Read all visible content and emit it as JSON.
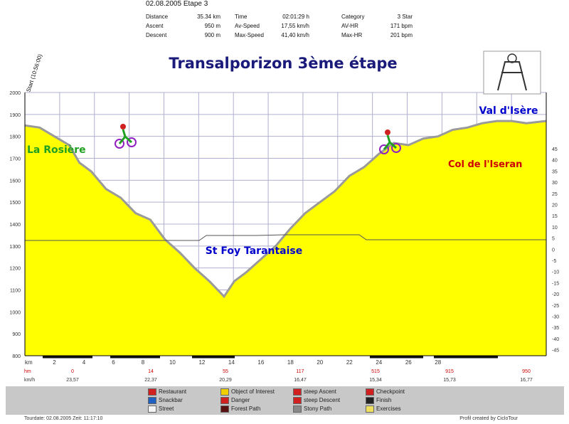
{
  "header": {
    "date_stage": "02.08.2005 Etape 3",
    "stats": [
      {
        "label": "Distance",
        "value": "35.34 km"
      },
      {
        "label": "Time",
        "value": "02:01:29 h"
      },
      {
        "label": "Category",
        "value": "3 Star"
      },
      {
        "label": "Ascent",
        "value": "950 m"
      },
      {
        "label": "Av-Speed",
        "value": "17,55 km/h"
      },
      {
        "label": "AV-HR",
        "value": "171 bpm"
      },
      {
        "label": "Descent",
        "value": "900 m"
      },
      {
        "label": "Max-Speed",
        "value": "41,40 km/h"
      },
      {
        "label": "Max-HR",
        "value": "201 bpm"
      }
    ]
  },
  "chart_data": {
    "type": "area",
    "title": "Transalporizon 3ème étape",
    "start_label": "Start (10:56:00)",
    "annotations": [
      "La Rosière",
      "St Foy Tarantaise",
      "Col de l'Iseran",
      "Val d'Isère"
    ],
    "x": [
      0,
      1,
      2,
      3,
      3.7,
      4.5,
      5.5,
      6.5,
      7.5,
      8.5,
      9.5,
      10.5,
      11.5,
      12.5,
      13.5,
      14.2,
      15,
      16,
      17,
      18,
      19,
      20,
      21,
      22,
      23,
      24,
      25,
      26,
      27,
      28,
      29,
      30,
      31,
      32,
      33,
      34,
      35.34
    ],
    "y": [
      1850,
      1840,
      1800,
      1760,
      1680,
      1640,
      1560,
      1520,
      1450,
      1420,
      1330,
      1270,
      1200,
      1140,
      1070,
      1140,
      1180,
      1240,
      1300,
      1380,
      1450,
      1500,
      1550,
      1620,
      1660,
      1720,
      1770,
      1760,
      1790,
      1800,
      1830,
      1840,
      1860,
      1870,
      1870,
      1860,
      1870
    ],
    "xlim": [
      0,
      35.34
    ],
    "ylim": [
      800,
      2000
    ],
    "xlabel": "km",
    "x_ticks": [
      "2",
      "4",
      "6",
      "8",
      "10",
      "12",
      "14",
      "16",
      "18",
      "20",
      "22",
      "24",
      "26",
      "28"
    ],
    "y_ticks_left": [
      "800",
      "900",
      "1000",
      "1100",
      "1200",
      "1300",
      "1400",
      "1500",
      "1600",
      "1700",
      "1800",
      "1900",
      "2000"
    ],
    "y_ticks_right": [
      "45",
      "40",
      "35",
      "30",
      "25",
      "20",
      "15",
      "10",
      "5",
      "0",
      "-5",
      "-10",
      "-15",
      "-20",
      "-25",
      "-30",
      "-35",
      "-40",
      "-45"
    ],
    "hm_label": "hm",
    "hm_values": [
      "0",
      "14",
      "55",
      "117",
      "515",
      "915",
      "950"
    ],
    "kmh_label": "km/h",
    "kmh_values": [
      "23,57",
      "22,37",
      "20,29",
      "16,47",
      "15,34",
      "15,73",
      "16,77"
    ],
    "grid": true
  },
  "legend": [
    {
      "label": "Restaurant",
      "icon": "restaurant-icon",
      "color": "#d02020"
    },
    {
      "label": "Snackbar",
      "icon": "snackbar-icon",
      "color": "#2060c0"
    },
    {
      "label": "Street",
      "icon": "street-icon",
      "color": "#f4f4f4"
    },
    {
      "label": "Object of Interest",
      "icon": "interest-icon",
      "color": "#f0d000"
    },
    {
      "label": "Danger",
      "icon": "danger-icon",
      "color": "#d02020"
    },
    {
      "label": "Forest Path",
      "icon": "forest-path-icon",
      "color": "#5a1010"
    },
    {
      "label": "steep Ascent",
      "icon": "steep-ascent-icon",
      "color": "#d02020"
    },
    {
      "label": "steep Descent",
      "icon": "steep-descent-icon",
      "color": "#d02020"
    },
    {
      "label": "Stony Path",
      "icon": "stony-path-icon",
      "color": "#888888"
    },
    {
      "label": "Checkpoint",
      "icon": "checkpoint-icon",
      "color": "#d02020"
    },
    {
      "label": "Finish",
      "icon": "finish-icon",
      "color": "#222222"
    },
    {
      "label": "Exercises",
      "icon": "exercises-icon",
      "color": "#f0e060"
    }
  ],
  "footer": {
    "left": "Tourdate: 02.08.2005  Zeit: 11:17:10",
    "right": "Profil created by CicloTour"
  },
  "colors": {
    "fill": "#ffff00",
    "outline": "#9a9a9a",
    "grid": "#b0b0d0",
    "title": "#1a1a7a",
    "green": "#20a020",
    "blue": "#0000cc",
    "red": "#cc0000"
  }
}
